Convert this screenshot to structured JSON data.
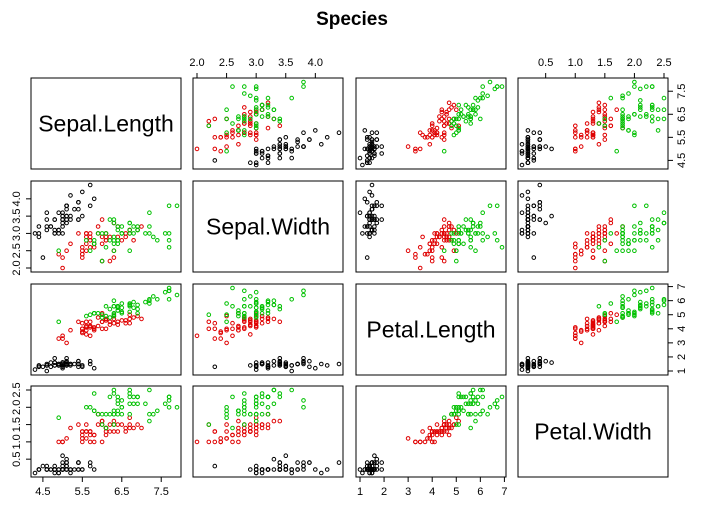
{
  "chart_data": {
    "type": "scatter-matrix",
    "title": "Species",
    "variables": [
      "Sepal.Length",
      "Sepal.Width",
      "Petal.Length",
      "Petal.Width"
    ],
    "ranges": [
      [
        4.3,
        7.9
      ],
      [
        2.0,
        4.4
      ],
      [
        1.0,
        6.9
      ],
      [
        0.1,
        2.5
      ]
    ],
    "ticks": [
      [
        "4.5",
        "5.5",
        "6.5",
        "7.5"
      ],
      [
        "2.0",
        "2.5",
        "3.0",
        "3.5",
        "4.0"
      ],
      [
        "1",
        "2",
        "3",
        "4",
        "5",
        "6",
        "7"
      ],
      [
        "0.5",
        "1.0",
        "1.5",
        "2.0",
        "2.5"
      ]
    ],
    "group_colors": [
      "#000000",
      "#df0000",
      "#00c000"
    ],
    "point_order": [
      "Sepal.Length",
      "Sepal.Width",
      "Petal.Length",
      "Petal.Width",
      "group"
    ],
    "points": [
      [
        5.1,
        3.5,
        1.4,
        0.2,
        0
      ],
      [
        4.9,
        3.0,
        1.4,
        0.2,
        0
      ],
      [
        4.7,
        3.2,
        1.3,
        0.2,
        0
      ],
      [
        4.6,
        3.1,
        1.5,
        0.2,
        0
      ],
      [
        5.0,
        3.6,
        1.4,
        0.2,
        0
      ],
      [
        5.4,
        3.9,
        1.7,
        0.4,
        0
      ],
      [
        4.6,
        3.4,
        1.4,
        0.3,
        0
      ],
      [
        5.0,
        3.4,
        1.5,
        0.2,
        0
      ],
      [
        4.4,
        2.9,
        1.4,
        0.2,
        0
      ],
      [
        4.9,
        3.1,
        1.5,
        0.1,
        0
      ],
      [
        5.4,
        3.7,
        1.5,
        0.2,
        0
      ],
      [
        4.8,
        3.4,
        1.6,
        0.2,
        0
      ],
      [
        4.8,
        3.0,
        1.4,
        0.1,
        0
      ],
      [
        4.3,
        3.0,
        1.1,
        0.1,
        0
      ],
      [
        5.8,
        4.0,
        1.2,
        0.2,
        0
      ],
      [
        5.7,
        4.4,
        1.5,
        0.4,
        0
      ],
      [
        5.4,
        3.9,
        1.3,
        0.4,
        0
      ],
      [
        5.1,
        3.5,
        1.4,
        0.3,
        0
      ],
      [
        5.7,
        3.8,
        1.7,
        0.3,
        0
      ],
      [
        5.1,
        3.8,
        1.5,
        0.3,
        0
      ],
      [
        5.4,
        3.4,
        1.7,
        0.2,
        0
      ],
      [
        5.1,
        3.7,
        1.5,
        0.4,
        0
      ],
      [
        4.6,
        3.6,
        1.0,
        0.2,
        0
      ],
      [
        5.1,
        3.3,
        1.7,
        0.5,
        0
      ],
      [
        4.8,
        3.4,
        1.9,
        0.2,
        0
      ],
      [
        5.0,
        3.0,
        1.6,
        0.2,
        0
      ],
      [
        5.0,
        3.4,
        1.6,
        0.4,
        0
      ],
      [
        5.2,
        3.5,
        1.5,
        0.2,
        0
      ],
      [
        5.2,
        3.4,
        1.4,
        0.2,
        0
      ],
      [
        4.7,
        3.2,
        1.6,
        0.2,
        0
      ],
      [
        4.8,
        3.1,
        1.6,
        0.2,
        0
      ],
      [
        5.4,
        3.4,
        1.5,
        0.4,
        0
      ],
      [
        5.2,
        4.1,
        1.5,
        0.1,
        0
      ],
      [
        5.5,
        4.2,
        1.4,
        0.2,
        0
      ],
      [
        4.9,
        3.1,
        1.5,
        0.2,
        0
      ],
      [
        5.0,
        3.2,
        1.2,
        0.2,
        0
      ],
      [
        5.5,
        3.5,
        1.3,
        0.2,
        0
      ],
      [
        4.9,
        3.6,
        1.4,
        0.1,
        0
      ],
      [
        4.4,
        3.0,
        1.3,
        0.2,
        0
      ],
      [
        5.1,
        3.4,
        1.5,
        0.2,
        0
      ],
      [
        5.0,
        3.5,
        1.3,
        0.3,
        0
      ],
      [
        4.5,
        2.3,
        1.3,
        0.3,
        0
      ],
      [
        4.4,
        3.2,
        1.3,
        0.2,
        0
      ],
      [
        5.0,
        3.5,
        1.6,
        0.6,
        0
      ],
      [
        5.1,
        3.8,
        1.9,
        0.4,
        0
      ],
      [
        4.8,
        3.0,
        1.4,
        0.3,
        0
      ],
      [
        5.1,
        3.8,
        1.6,
        0.2,
        0
      ],
      [
        4.6,
        3.2,
        1.4,
        0.2,
        0
      ],
      [
        5.3,
        3.7,
        1.5,
        0.2,
        0
      ],
      [
        5.0,
        3.3,
        1.4,
        0.2,
        0
      ],
      [
        7.0,
        3.2,
        4.7,
        1.4,
        1
      ],
      [
        6.4,
        3.2,
        4.5,
        1.5,
        1
      ],
      [
        6.9,
        3.1,
        4.9,
        1.5,
        1
      ],
      [
        5.5,
        2.3,
        4.0,
        1.3,
        1
      ],
      [
        6.5,
        2.8,
        4.6,
        1.5,
        1
      ],
      [
        5.7,
        2.8,
        4.5,
        1.3,
        1
      ],
      [
        6.3,
        3.3,
        4.7,
        1.6,
        1
      ],
      [
        4.9,
        2.4,
        3.3,
        1.0,
        1
      ],
      [
        6.6,
        2.9,
        4.6,
        1.3,
        1
      ],
      [
        5.2,
        2.7,
        3.9,
        1.4,
        1
      ],
      [
        5.0,
        2.0,
        3.5,
        1.0,
        1
      ],
      [
        5.9,
        3.0,
        4.2,
        1.5,
        1
      ],
      [
        6.0,
        2.2,
        4.0,
        1.0,
        1
      ],
      [
        6.1,
        2.9,
        4.7,
        1.4,
        1
      ],
      [
        5.6,
        2.9,
        3.6,
        1.3,
        1
      ],
      [
        6.7,
        3.1,
        4.4,
        1.4,
        1
      ],
      [
        5.6,
        3.0,
        4.5,
        1.5,
        1
      ],
      [
        5.8,
        2.7,
        4.1,
        1.0,
        1
      ],
      [
        6.2,
        2.2,
        4.5,
        1.5,
        1
      ],
      [
        5.6,
        2.5,
        3.9,
        1.1,
        1
      ],
      [
        5.9,
        3.2,
        4.8,
        1.8,
        1
      ],
      [
        6.1,
        2.8,
        4.0,
        1.3,
        1
      ],
      [
        6.3,
        2.5,
        4.9,
        1.5,
        1
      ],
      [
        6.1,
        2.8,
        4.7,
        1.2,
        1
      ],
      [
        6.4,
        2.9,
        4.3,
        1.3,
        1
      ],
      [
        6.6,
        3.0,
        4.4,
        1.4,
        1
      ],
      [
        6.8,
        2.8,
        4.8,
        1.4,
        1
      ],
      [
        6.7,
        3.0,
        5.0,
        1.7,
        1
      ],
      [
        6.0,
        2.9,
        4.5,
        1.5,
        1
      ],
      [
        5.7,
        2.6,
        3.5,
        1.0,
        1
      ],
      [
        5.5,
        2.4,
        3.8,
        1.1,
        1
      ],
      [
        5.5,
        2.4,
        3.7,
        1.0,
        1
      ],
      [
        5.8,
        2.7,
        3.9,
        1.2,
        1
      ],
      [
        6.0,
        2.7,
        5.1,
        1.6,
        1
      ],
      [
        5.4,
        3.0,
        4.5,
        1.5,
        1
      ],
      [
        6.0,
        3.4,
        4.5,
        1.6,
        1
      ],
      [
        6.7,
        3.1,
        4.7,
        1.5,
        1
      ],
      [
        6.3,
        2.3,
        4.4,
        1.3,
        1
      ],
      [
        5.6,
        3.0,
        4.1,
        1.3,
        1
      ],
      [
        5.5,
        2.5,
        4.0,
        1.3,
        1
      ],
      [
        5.5,
        2.6,
        4.4,
        1.2,
        1
      ],
      [
        6.1,
        3.0,
        4.6,
        1.4,
        1
      ],
      [
        5.8,
        2.6,
        4.0,
        1.2,
        1
      ],
      [
        5.0,
        2.3,
        3.3,
        1.0,
        1
      ],
      [
        5.6,
        2.7,
        4.2,
        1.3,
        1
      ],
      [
        5.7,
        3.0,
        4.2,
        1.2,
        1
      ],
      [
        5.7,
        2.9,
        4.2,
        1.3,
        1
      ],
      [
        6.2,
        2.9,
        4.3,
        1.3,
        1
      ],
      [
        5.1,
        2.5,
        3.0,
        1.1,
        1
      ],
      [
        5.7,
        2.8,
        4.1,
        1.3,
        1
      ],
      [
        6.3,
        3.3,
        6.0,
        2.5,
        2
      ],
      [
        5.8,
        2.7,
        5.1,
        1.9,
        2
      ],
      [
        7.1,
        3.0,
        5.9,
        2.1,
        2
      ],
      [
        6.3,
        2.9,
        5.6,
        1.8,
        2
      ],
      [
        6.5,
        3.0,
        5.8,
        2.2,
        2
      ],
      [
        7.6,
        3.0,
        6.6,
        2.1,
        2
      ],
      [
        4.9,
        2.5,
        4.5,
        1.7,
        2
      ],
      [
        7.3,
        2.9,
        6.3,
        1.8,
        2
      ],
      [
        6.7,
        2.5,
        5.8,
        1.8,
        2
      ],
      [
        7.2,
        3.6,
        6.1,
        2.5,
        2
      ],
      [
        6.5,
        3.2,
        5.1,
        2.0,
        2
      ],
      [
        6.4,
        2.7,
        5.3,
        1.9,
        2
      ],
      [
        6.8,
        3.0,
        5.5,
        2.1,
        2
      ],
      [
        5.7,
        2.5,
        5.0,
        2.0,
        2
      ],
      [
        5.8,
        2.8,
        5.1,
        2.4,
        2
      ],
      [
        6.4,
        3.2,
        5.3,
        2.3,
        2
      ],
      [
        6.5,
        3.0,
        5.5,
        1.8,
        2
      ],
      [
        7.7,
        3.8,
        6.7,
        2.2,
        2
      ],
      [
        7.7,
        2.6,
        6.9,
        2.3,
        2
      ],
      [
        6.0,
        2.2,
        5.0,
        1.5,
        2
      ],
      [
        6.9,
        3.2,
        5.7,
        2.3,
        2
      ],
      [
        5.6,
        2.8,
        4.9,
        2.0,
        2
      ],
      [
        7.7,
        2.8,
        6.7,
        2.0,
        2
      ],
      [
        6.3,
        2.7,
        4.9,
        1.8,
        2
      ],
      [
        6.7,
        3.3,
        5.7,
        2.1,
        2
      ],
      [
        7.2,
        3.2,
        6.0,
        1.8,
        2
      ],
      [
        6.2,
        2.8,
        4.8,
        1.8,
        2
      ],
      [
        6.1,
        3.0,
        4.9,
        1.8,
        2
      ],
      [
        6.4,
        2.8,
        5.6,
        2.1,
        2
      ],
      [
        7.2,
        3.0,
        5.8,
        1.6,
        2
      ],
      [
        7.4,
        2.8,
        6.1,
        1.9,
        2
      ],
      [
        7.9,
        3.8,
        6.4,
        2.0,
        2
      ],
      [
        6.4,
        2.8,
        5.6,
        2.2,
        2
      ],
      [
        6.3,
        2.8,
        5.1,
        1.5,
        2
      ],
      [
        6.1,
        2.6,
        5.6,
        1.4,
        2
      ],
      [
        7.7,
        3.0,
        6.1,
        2.3,
        2
      ],
      [
        6.3,
        3.4,
        5.6,
        2.4,
        2
      ],
      [
        6.4,
        3.1,
        5.5,
        1.8,
        2
      ],
      [
        6.0,
        3.0,
        4.8,
        1.8,
        2
      ],
      [
        6.9,
        3.1,
        5.4,
        2.1,
        2
      ],
      [
        6.7,
        3.1,
        5.6,
        2.4,
        2
      ],
      [
        6.9,
        3.1,
        5.1,
        2.3,
        2
      ],
      [
        5.8,
        2.7,
        5.1,
        1.9,
        2
      ],
      [
        6.8,
        3.2,
        5.9,
        2.3,
        2
      ],
      [
        6.7,
        3.3,
        5.7,
        2.5,
        2
      ],
      [
        6.7,
        3.0,
        5.2,
        2.3,
        2
      ],
      [
        6.3,
        2.5,
        5.0,
        1.9,
        2
      ],
      [
        6.5,
        3.0,
        5.2,
        2.0,
        2
      ],
      [
        6.2,
        3.4,
        5.4,
        2.3,
        2
      ],
      [
        5.9,
        3.0,
        5.1,
        1.8,
        2
      ]
    ]
  }
}
